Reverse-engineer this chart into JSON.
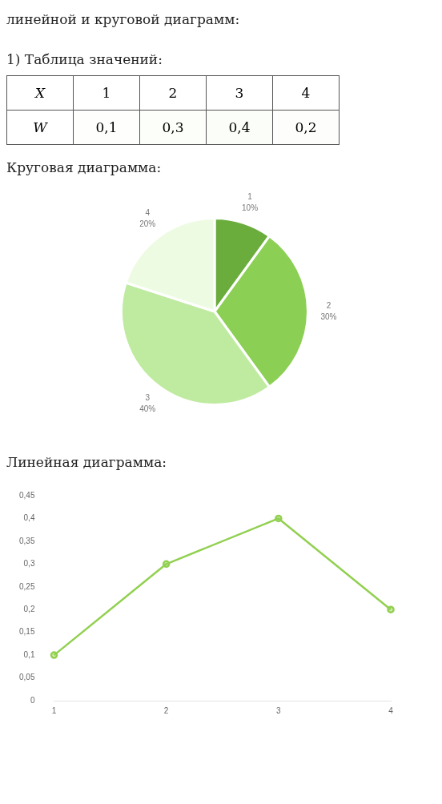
{
  "chart_data": [
    {
      "type": "heatmap",
      "title": "линейной и круговой диаграмм:",
      "subtitle": "1) Таблица значений:",
      "xlabel": "X",
      "categories": [
        "1",
        "2",
        "3",
        "4"
      ],
      "y_categories": [
        "W"
      ],
      "cells": [
        [
          0.1,
          0.3,
          0.4,
          0.2
        ]
      ],
      "cell_labels": [
        [
          "0,1",
          "0,3",
          "0,4",
          "0,2"
        ]
      ]
    },
    {
      "type": "pie",
      "title": "Круговая диаграмма:",
      "categories": [
        "1",
        "2",
        "3",
        "4"
      ],
      "values": [
        10,
        30,
        40,
        20
      ],
      "colors": [
        "#6aad3d",
        "#8ccf55",
        "#bfeba0",
        "#eefbe3"
      ],
      "value_labels": [
        "10%",
        "30%",
        "40%",
        "20%"
      ],
      "legend": false
    },
    {
      "type": "line",
      "title": "Линейная диаграмма:",
      "categories": [
        "1",
        "2",
        "3",
        "4"
      ],
      "series": [
        {
          "color": "#92d050",
          "values": [
            0.1,
            0.3,
            0.4,
            0.2
          ]
        }
      ],
      "ylim": [
        0,
        0.45
      ],
      "yticks": [
        0,
        {
          "value": 0.05,
          "label": "0,05"
        },
        {
          "value": 0.1,
          "label": "0,1"
        },
        {
          "value": 0.15,
          "label": "0,15"
        },
        {
          "value": 0.2,
          "label": "0,2"
        },
        {
          "value": 0.25,
          "label": "0,25"
        },
        {
          "value": 0.3,
          "label": "0,3"
        },
        {
          "value": 0.35,
          "label": "0,35"
        },
        {
          "value": 0.4,
          "label": "0,4"
        },
        {
          "value": 0.45,
          "label": "0,45"
        }
      ],
      "grid": false,
      "marker": "circle",
      "line_style": "solid",
      "legend": false
    }
  ]
}
